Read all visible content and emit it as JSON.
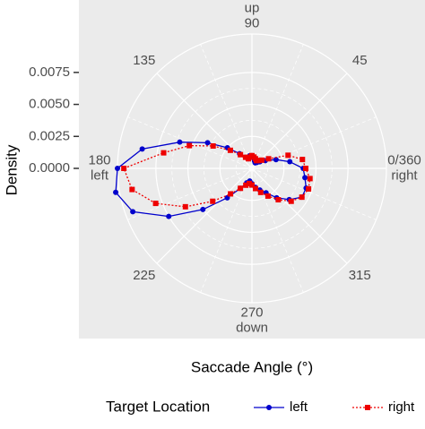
{
  "chart_data": {
    "type": "polar-line",
    "x_label": "Saccade Angle (°)",
    "y_label": "Density",
    "legend_title": "Target Location",
    "xlim": [
      0,
      360
    ],
    "xticks": [
      {
        "value": 0,
        "label": "0/360"
      },
      45,
      90,
      135,
      180,
      225,
      270,
      315
    ],
    "direction_labels": [
      {
        "value": 0,
        "label": "right"
      },
      {
        "value": 90,
        "label": "up"
      },
      {
        "value": 180,
        "label": "left"
      },
      {
        "value": 270,
        "label": "down"
      }
    ],
    "ylim": [
      0,
      0.0105
    ],
    "yticks": [
      {
        "value": 0,
        "label": "0.0000"
      },
      {
        "value": 0.0025,
        "label": "0.0025"
      },
      {
        "value": 0.005,
        "label": "0.0050"
      },
      {
        "value": 0.0075,
        "label": "0.0075"
      }
    ],
    "x": [
      0,
      10,
      20,
      30,
      40,
      50,
      60,
      70,
      80,
      90,
      100,
      110,
      120,
      130,
      140,
      150,
      160,
      170,
      180,
      190,
      200,
      210,
      220,
      230,
      240,
      250,
      260,
      270,
      280,
      290,
      300,
      310,
      320,
      330,
      340,
      350
    ],
    "series": [
      {
        "name": "left",
        "color": "#0000cc",
        "marker": "circle",
        "dash": "solid",
        "values": [
          0.004,
          0.003,
          0.002,
          0.0012,
          0.0008,
          0.0006,
          0.0005,
          0.0006,
          0.0008,
          0.001,
          0.001,
          0.0008,
          0.001,
          0.0015,
          0.0025,
          0.004,
          0.006,
          0.0087,
          0.0105,
          0.0108,
          0.0099,
          0.0075,
          0.005,
          0.003,
          0.0018,
          0.0012,
          0.001,
          0.0012,
          0.0015,
          0.0018,
          0.0022,
          0.003,
          0.0038,
          0.0045,
          0.0045,
          0.0042
        ]
      },
      {
        "name": "right",
        "color": "#ee0000",
        "marker": "square",
        "dash": "dotted",
        "values": [
          0.0042,
          0.004,
          0.003,
          0.0015,
          0.001,
          0.0008,
          0.0007,
          0.0008,
          0.0009,
          0.001,
          0.0009,
          0.0008,
          0.001,
          0.0014,
          0.0022,
          0.0035,
          0.0052,
          0.007,
          0.01,
          0.0095,
          0.008,
          0.006,
          0.004,
          0.0026,
          0.0018,
          0.0014,
          0.0012,
          0.0013,
          0.0016,
          0.002,
          0.0025,
          0.0032,
          0.004,
          0.0045,
          0.0047,
          0.0046
        ]
      }
    ]
  }
}
